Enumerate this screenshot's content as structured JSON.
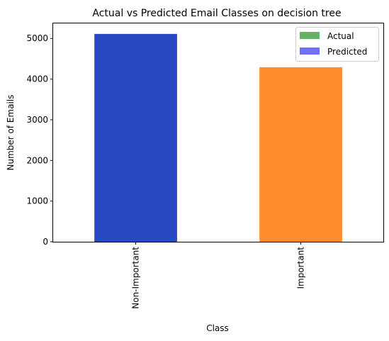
{
  "chart_data": {
    "type": "bar",
    "title": "Actual vs Predicted Email Classes on decision tree",
    "xlabel": "Class",
    "ylabel": "Number of Emails",
    "categories": [
      "Non-Important",
      "Important"
    ],
    "series": [
      {
        "name": "Actual",
        "values": [
          5110,
          4290
        ],
        "legend_color": "#62b362",
        "bar_colors": [
          "#2a48c2",
          "#fe8c2c"
        ]
      },
      {
        "name": "Predicted",
        "values": [
          5110,
          4290
        ],
        "legend_color": "#7070f4",
        "bar_colors": [
          "#2a48c2",
          "#fe8c2c"
        ]
      }
    ],
    "y_ticks": [
      "0",
      "1000",
      "2000",
      "3000",
      "4000",
      "5000"
    ],
    "ylim": [
      0,
      5370
    ],
    "grid": false,
    "legend_position": "top-right",
    "x_tick_rotation": "vertical"
  }
}
